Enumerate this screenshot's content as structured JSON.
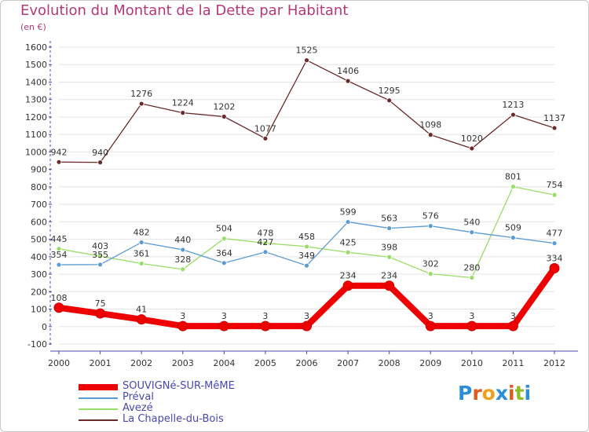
{
  "header": {
    "title": "Evolution du Montant de la Dette par Habitant",
    "subtitle": "(en €)"
  },
  "colors": {
    "title": "#b4387a",
    "axis": "#4848b0",
    "grid": "#e4e4e4",
    "legend_text": "#4848b0",
    "label_text": "#333333"
  },
  "logo": {
    "letters": [
      "P",
      "r",
      "o",
      "x",
      "i",
      "t",
      "i"
    ],
    "colors": [
      "#2a8fd6",
      "#e05a1e",
      "#f0a020",
      "#2a8fd6",
      "#e05a1e",
      "#8cbf2a",
      "#2a8fd6"
    ]
  },
  "chart_data": {
    "type": "line",
    "x": [
      "2000",
      "2001",
      "2002",
      "2003",
      "2004",
      "2005",
      "2006",
      "2007",
      "2008",
      "2009",
      "2010",
      "2011",
      "2012"
    ],
    "ylim": [
      -100,
      1600
    ],
    "yticks": [
      "-100",
      "0",
      "100",
      "200",
      "300",
      "400",
      "500",
      "600",
      "700",
      "800",
      "900",
      "1000",
      "1100",
      "1200",
      "1300",
      "1400",
      "1500",
      "1600"
    ],
    "grid": true,
    "legend_position": "bottom-left",
    "series": [
      {
        "name": "SOUVIGNé-SUR-MêME",
        "color": "#ee0000",
        "width": 8,
        "values": [
          108,
          75,
          41,
          3,
          3,
          3,
          3,
          234,
          234,
          3,
          3,
          3,
          334
        ],
        "labels": [
          "108",
          "75",
          "41",
          "3",
          "3",
          "3",
          "3",
          "234",
          "234",
          "3",
          "3",
          "3",
          "334"
        ]
      },
      {
        "name": "Préval",
        "color": "#5b9bd5",
        "width": 1.3,
        "values": [
          354,
          355,
          482,
          440,
          364,
          427,
          349,
          599,
          563,
          576,
          540,
          509,
          477
        ],
        "labels": [
          "354",
          "355",
          "482",
          "440",
          "364",
          "427",
          "349",
          "599",
          "563",
          "576",
          "540",
          "509",
          "477"
        ]
      },
      {
        "name": "Avezé",
        "color": "#99dd66",
        "width": 1.3,
        "values": [
          445,
          403,
          361,
          328,
          504,
          478,
          458,
          425,
          398,
          302,
          280,
          801,
          754
        ],
        "labels": [
          "445",
          "403",
          "361",
          "328",
          "504",
          "478",
          "458",
          "425",
          "398",
          "302",
          "280",
          "801",
          "754"
        ]
      },
      {
        "name": "La Chapelle-du-Bois",
        "color": "#6b2a2a",
        "width": 1.3,
        "values": [
          942,
          940,
          1276,
          1224,
          1202,
          1077,
          1525,
          1406,
          1295,
          1098,
          1020,
          1213,
          1137
        ],
        "labels": [
          "942",
          "940",
          "1276",
          "1224",
          "1202",
          "1077",
          "1525",
          "1406",
          "1295",
          "1098",
          "1020",
          "1213",
          "1137"
        ]
      }
    ]
  }
}
